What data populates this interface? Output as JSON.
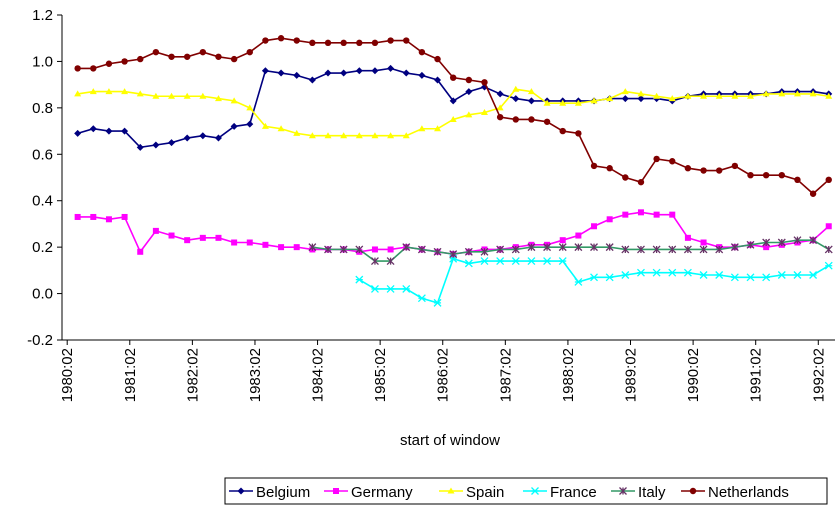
{
  "chart_data": {
    "type": "line",
    "x_label": "start of window",
    "x": [
      1980.25,
      1980.5,
      1980.75,
      1981,
      1981.25,
      1981.5,
      1981.75,
      1982,
      1982.25,
      1982.5,
      1982.75,
      1983,
      1983.25,
      1983.5,
      1983.75,
      1984,
      1984.25,
      1984.5,
      1984.75,
      1985,
      1985.25,
      1985.5,
      1985.75,
      1986,
      1986.25,
      1986.5,
      1986.75,
      1987,
      1987.25,
      1987.5,
      1987.75,
      1988,
      1988.25,
      1988.5,
      1988.75,
      1989,
      1989.25,
      1989.5,
      1989.75,
      1990,
      1990.25,
      1990.5,
      1990.75,
      1991,
      1991.25,
      1991.5,
      1991.75,
      1992,
      1992.25
    ],
    "xlim": [
      1980,
      1992.35
    ],
    "xticks": [
      {
        "value": 1980.083,
        "label": "1980:02"
      },
      {
        "value": 1981.083,
        "label": "1981:02"
      },
      {
        "value": 1982.083,
        "label": "1982:02"
      },
      {
        "value": 1983.083,
        "label": "1983:02"
      },
      {
        "value": 1984.083,
        "label": "1984:02"
      },
      {
        "value": 1985.083,
        "label": "1985:02"
      },
      {
        "value": 1986.083,
        "label": "1986:02"
      },
      {
        "value": 1987.083,
        "label": "1987:02"
      },
      {
        "value": 1988.083,
        "label": "1988:02"
      },
      {
        "value": 1989.083,
        "label": "1989:02"
      },
      {
        "value": 1990.083,
        "label": "1990:02"
      },
      {
        "value": 1991.083,
        "label": "1991:02"
      },
      {
        "value": 1992.083,
        "label": "1992:02"
      }
    ],
    "ylim": [
      -0.2,
      1.2
    ],
    "yticks": [
      -0.2,
      {
        "value": 0,
        "label": "0.0"
      },
      0.2,
      0.4,
      0.6,
      0.8,
      {
        "value": 1,
        "label": "1.0"
      },
      1.2
    ],
    "grid": false,
    "legend": "bottom",
    "series": [
      {
        "name": "Belgium",
        "color": "#000080",
        "marker": "diamond",
        "values": [
          0.69,
          0.71,
          0.7,
          0.7,
          0.63,
          0.64,
          0.65,
          0.67,
          0.68,
          0.67,
          0.72,
          0.73,
          0.96,
          0.95,
          0.94,
          0.92,
          0.95,
          0.95,
          0.96,
          0.96,
          0.97,
          0.95,
          0.94,
          0.92,
          0.83,
          0.87,
          0.89,
          0.86,
          0.84,
          0.83,
          0.83,
          0.83,
          0.83,
          0.83,
          0.84,
          0.84,
          0.84,
          0.84,
          0.83,
          0.85,
          0.86,
          0.86,
          0.86,
          0.86,
          0.86,
          0.87,
          0.87,
          0.87,
          0.86
        ]
      },
      {
        "name": "Germany",
        "color": "#ff00ff",
        "marker": "square",
        "values": [
          0.33,
          0.33,
          0.32,
          0.33,
          0.18,
          0.27,
          0.25,
          0.23,
          0.24,
          0.24,
          0.22,
          0.22,
          0.21,
          0.2,
          0.2,
          0.19,
          0.19,
          0.19,
          0.18,
          0.19,
          0.19,
          0.2,
          0.19,
          0.18,
          0.17,
          0.18,
          0.19,
          0.19,
          0.2,
          0.21,
          0.21,
          0.23,
          0.25,
          0.29,
          0.32,
          0.34,
          0.35,
          0.34,
          0.34,
          0.24,
          0.22,
          0.2,
          0.2,
          0.21,
          0.2,
          0.21,
          0.22,
          0.23,
          0.29
        ]
      },
      {
        "name": "Spain",
        "color": "#ffff00",
        "marker": "triangle",
        "values": [
          0.86,
          0.87,
          0.87,
          0.87,
          0.86,
          0.85,
          0.85,
          0.85,
          0.85,
          0.84,
          0.83,
          0.8,
          0.72,
          0.71,
          0.69,
          0.68,
          0.68,
          0.68,
          0.68,
          0.68,
          0.68,
          0.68,
          0.71,
          0.71,
          0.75,
          0.77,
          0.78,
          0.8,
          0.88,
          0.87,
          0.82,
          0.82,
          0.82,
          0.83,
          0.84,
          0.87,
          0.86,
          0.85,
          0.84,
          0.85,
          0.85,
          0.85,
          0.85,
          0.85,
          0.86,
          0.86,
          0.86,
          0.86,
          0.85
        ]
      },
      {
        "name": "France",
        "color": "#00ffff",
        "marker": "x-star",
        "values": [
          null,
          null,
          null,
          null,
          null,
          null,
          null,
          null,
          null,
          null,
          null,
          null,
          null,
          null,
          null,
          null,
          null,
          null,
          0.06,
          0.02,
          0.02,
          0.02,
          -0.02,
          -0.04,
          0.15,
          0.13,
          0.14,
          0.14,
          0.14,
          0.14,
          0.14,
          0.14,
          0.05,
          0.07,
          0.07,
          0.08,
          0.09,
          0.09,
          0.09,
          0.09,
          0.08,
          0.08,
          0.07,
          0.07,
          0.07,
          0.08,
          0.08,
          0.08,
          0.12
        ]
      },
      {
        "name": "Italy",
        "color": "#339966",
        "marker": "asterisk",
        "values": [
          null,
          null,
          null,
          null,
          null,
          null,
          null,
          null,
          null,
          null,
          null,
          null,
          null,
          null,
          null,
          0.2,
          0.19,
          0.19,
          0.19,
          0.14,
          0.14,
          0.2,
          0.19,
          0.18,
          0.17,
          0.18,
          0.18,
          0.19,
          0.19,
          0.2,
          0.2,
          0.2,
          0.2,
          0.2,
          0.2,
          0.19,
          0.19,
          0.19,
          0.19,
          0.19,
          0.19,
          0.19,
          0.2,
          0.21,
          0.22,
          0.22,
          0.23,
          0.23,
          0.19
        ]
      },
      {
        "name": "Netherlands",
        "color": "#800000",
        "marker": "circle",
        "values": [
          0.97,
          0.97,
          0.99,
          1.0,
          1.01,
          1.04,
          1.02,
          1.02,
          1.04,
          1.02,
          1.01,
          1.04,
          1.09,
          1.1,
          1.09,
          1.08,
          1.08,
          1.08,
          1.08,
          1.08,
          1.09,
          1.09,
          1.04,
          1.01,
          0.93,
          0.92,
          0.91,
          0.76,
          0.75,
          0.75,
          0.74,
          0.7,
          0.69,
          0.55,
          0.54,
          0.5,
          0.48,
          0.58,
          0.57,
          0.54,
          0.53,
          0.53,
          0.55,
          0.51,
          0.51,
          0.51,
          0.49,
          0.43,
          0.49
        ]
      }
    ]
  }
}
